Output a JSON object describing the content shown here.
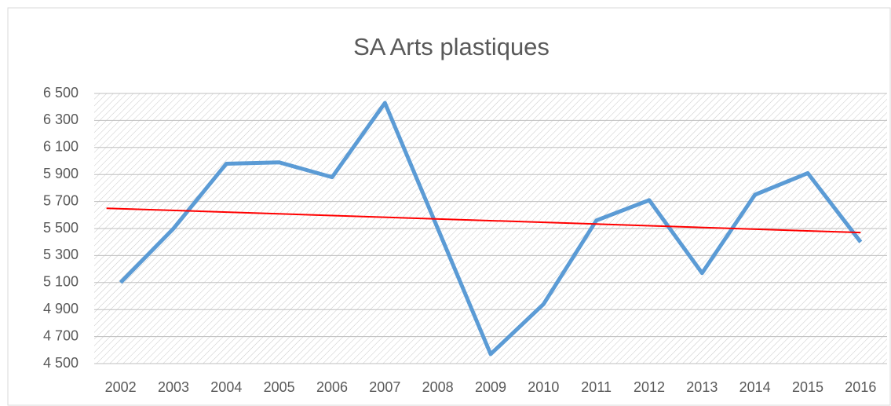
{
  "chart_data": {
    "type": "line",
    "title": "SA Arts plastiques",
    "categories": [
      "2002",
      "2003",
      "2004",
      "2005",
      "2006",
      "2007",
      "2008",
      "2009",
      "2010",
      "2011",
      "2012",
      "2013",
      "2014",
      "2015",
      "2016"
    ],
    "series": [
      {
        "name": "SA Arts plastiques",
        "color": "#5b9bd5",
        "values": [
          5100,
          5500,
          5980,
          5990,
          5880,
          6430,
          5500,
          4570,
          4940,
          5560,
          5710,
          5170,
          5750,
          5910,
          5400
        ]
      }
    ],
    "trend": {
      "color": "#ff0000",
      "values": [
        5650,
        5470
      ]
    },
    "ylim": [
      4500,
      6500
    ],
    "yticks": [
      {
        "value": 4500,
        "label": "4 500"
      },
      {
        "value": 4700,
        "label": "4 700"
      },
      {
        "value": 4900,
        "label": "4 900"
      },
      {
        "value": 5100,
        "label": "5 100"
      },
      {
        "value": 5300,
        "label": "5 300"
      },
      {
        "value": 5500,
        "label": "5 500"
      },
      {
        "value": 5700,
        "label": "5 700"
      },
      {
        "value": 5900,
        "label": "5 900"
      },
      {
        "value": 6100,
        "label": "6 100"
      },
      {
        "value": 6300,
        "label": "6 300"
      },
      {
        "value": 6500,
        "label": "6 500"
      }
    ],
    "grid": true
  }
}
